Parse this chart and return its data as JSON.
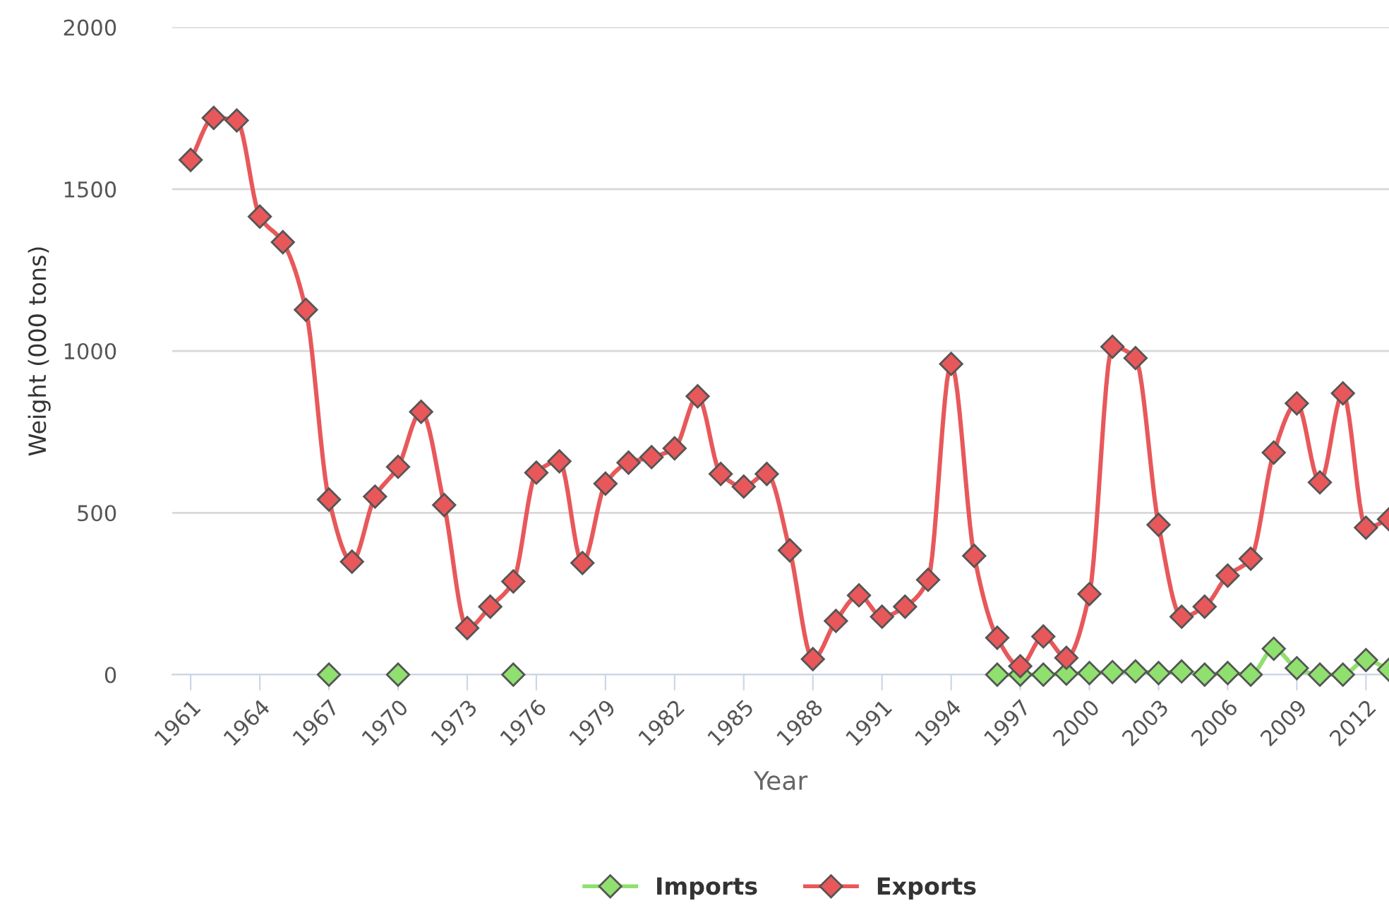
{
  "chart_data": {
    "type": "line",
    "xlabel": "Year",
    "ylabel": "Weight (000 tons)",
    "x": [
      1961,
      1962,
      1963,
      1964,
      1965,
      1966,
      1967,
      1968,
      1969,
      1970,
      1971,
      1972,
      1973,
      1974,
      1975,
      1976,
      1977,
      1978,
      1979,
      1980,
      1981,
      1982,
      1983,
      1984,
      1985,
      1986,
      1987,
      1988,
      1989,
      1990,
      1991,
      1992,
      1993,
      1994,
      1995,
      1996,
      1997,
      1998,
      1999,
      2000,
      2001,
      2002,
      2003,
      2004,
      2005,
      2006,
      2007,
      2008,
      2009,
      2010,
      2011,
      2012,
      2013
    ],
    "series": [
      {
        "name": "Imports",
        "color": "#90e070",
        "values": [
          null,
          null,
          null,
          null,
          null,
          null,
          0,
          null,
          null,
          0,
          null,
          null,
          null,
          null,
          0,
          null,
          null,
          null,
          null,
          null,
          null,
          null,
          null,
          null,
          null,
          null,
          null,
          null,
          null,
          null,
          null,
          null,
          null,
          null,
          null,
          0,
          0,
          0,
          3,
          5,
          8,
          10,
          5,
          10,
          0,
          5,
          0,
          80,
          20,
          0,
          0,
          45,
          15
        ]
      },
      {
        "name": "Exports",
        "color": "#e8585a",
        "values": [
          1590,
          1720,
          1712,
          1415,
          1336,
          1127,
          541,
          349,
          550,
          642,
          812,
          524,
          144,
          210,
          288,
          624,
          659,
          345,
          590,
          655,
          672,
          699,
          860,
          620,
          581,
          620,
          384,
          48,
          166,
          245,
          179,
          210,
          293,
          960,
          367,
          114,
          26,
          118,
          52,
          249,
          1013,
          978,
          463,
          179,
          210,
          306,
          358,
          686,
          838,
          594,
          869,
          454,
          480
        ]
      }
    ],
    "xlim": [
      1960.2,
      2013
    ],
    "xticks": [
      1961,
      1964,
      1967,
      1970,
      1973,
      1976,
      1979,
      1982,
      1985,
      1988,
      1991,
      1994,
      1997,
      2000,
      2003,
      2006,
      2009,
      2012
    ],
    "ylim": [
      0,
      2000
    ],
    "yticks": [
      0,
      500,
      1000,
      1500,
      2000
    ],
    "grid": "y",
    "legend": "bottom",
    "marker": "diamond",
    "line_style": "solid"
  }
}
